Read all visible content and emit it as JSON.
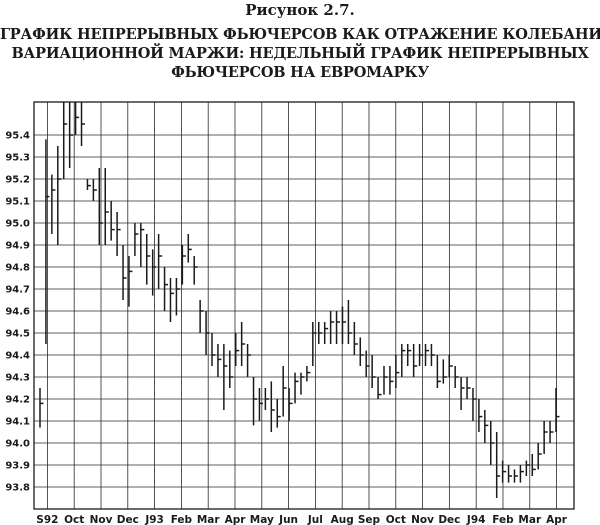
{
  "figure": {
    "label": "Рисунок 2.7.",
    "title_lines": [
      "ГРАФИК НЕПРЕРЫВНЫХ ФЬЮЧЕРСОВ КАК ОТРАЖЕНИЕ КОЛЕБАНИЙ",
      "ВАРИАЦИОННОЙ МАРЖИ: НЕДЕЛЬНЫЙ ГРАФИК НЕПРЕРЫВНЫХ",
      "ФЬЮЧЕРСОВ НА ЕВРОМАРКУ"
    ]
  },
  "chart_data": {
    "type": "bar",
    "subtype": "ohlc-weekly",
    "title": "ГРАФИК НЕПРЕРЫВНЫХ ФЬЮЧЕРСОВ КАК ОТРАЖЕНИЕ КОЛЕБАНИЙ ВАРИАЦИОННОЙ МАРЖИ: НЕДЕЛЬНЫЙ ГРАФИК НЕПРЕРЫВНЫХ ФЬЮЧЕРСОВ НА ЕВРОМАРКУ",
    "xlabel": "",
    "ylabel": "",
    "ylim": [
      93.7,
      95.55
    ],
    "y_ticks": [
      "95.4",
      "95.3",
      "95.2",
      "95.1",
      "95.0",
      "94.9",
      "94.8",
      "94.7",
      "94.6",
      "94.5",
      "94.4",
      "94.3",
      "94.2",
      "94.1",
      "94.0",
      "93.9",
      "93.8"
    ],
    "x_ticks": [
      "S92",
      "Oct",
      "Nov",
      "Dec",
      "J93",
      "Feb",
      "Mar",
      "Apr",
      "May",
      "Jun",
      "Jul",
      "Aug",
      "Sep",
      "Oct",
      "Nov",
      "Dec",
      "J94",
      "Feb",
      "Mar",
      "Apr"
    ],
    "grid": true,
    "bar_color": "#1a1a1a",
    "bars": [
      {
        "h": 94.25,
        "l": 94.07,
        "c": 94.18
      },
      {
        "h": 95.38,
        "l": 94.45,
        "c": 95.12
      },
      {
        "h": 95.22,
        "l": 94.95,
        "c": 95.15
      },
      {
        "h": 95.35,
        "l": 94.9,
        "c": 95.2
      },
      {
        "h": 95.55,
        "l": 95.2,
        "c": 95.45
      },
      {
        "h": 95.55,
        "l": 95.25,
        "c": 95.4
      },
      {
        "h": 95.55,
        "l": 95.4,
        "c": 95.48
      },
      {
        "h": 95.55,
        "l": 95.35,
        "c": 95.45
      },
      {
        "h": 95.2,
        "l": 95.15,
        "c": 95.17
      },
      {
        "h": 95.2,
        "l": 95.1,
        "c": 95.15
      },
      {
        "h": 95.25,
        "l": 94.9,
        "c": 95.0
      },
      {
        "h": 95.25,
        "l": 94.9,
        "c": 95.05
      },
      {
        "h": 95.1,
        "l": 94.92,
        "c": 94.97
      },
      {
        "h": 95.05,
        "l": 94.85,
        "c": 94.97
      },
      {
        "h": 94.9,
        "l": 94.65,
        "c": 94.75
      },
      {
        "h": 94.85,
        "l": 94.62,
        "c": 94.78
      },
      {
        "h": 95.0,
        "l": 94.85,
        "c": 94.95
      },
      {
        "h": 95.0,
        "l": 94.8,
        "c": 94.97
      },
      {
        "h": 94.95,
        "l": 94.72,
        "c": 94.85
      },
      {
        "h": 94.88,
        "l": 94.67,
        "c": 94.8
      },
      {
        "h": 94.95,
        "l": 94.7,
        "c": 94.85
      },
      {
        "h": 94.8,
        "l": 94.6,
        "c": 94.72
      },
      {
        "h": 94.75,
        "l": 94.55,
        "c": 94.68
      },
      {
        "h": 94.75,
        "l": 94.58,
        "c": 94.7
      },
      {
        "h": 94.9,
        "l": 94.72,
        "c": 94.85
      },
      {
        "h": 94.95,
        "l": 94.82,
        "c": 94.88
      },
      {
        "h": 94.85,
        "l": 94.72,
        "c": 94.8
      },
      {
        "h": 94.65,
        "l": 94.5,
        "c": 94.6
      },
      {
        "h": 94.6,
        "l": 94.4,
        "c": 94.5
      },
      {
        "h": 94.5,
        "l": 94.35,
        "c": 94.4
      },
      {
        "h": 94.45,
        "l": 94.3,
        "c": 94.38
      },
      {
        "h": 94.45,
        "l": 94.15,
        "c": 94.35
      },
      {
        "h": 94.42,
        "l": 94.25,
        "c": 94.3
      },
      {
        "h": 94.5,
        "l": 94.35,
        "c": 94.42
      },
      {
        "h": 94.55,
        "l": 94.35,
        "c": 94.45
      },
      {
        "h": 94.45,
        "l": 94.3,
        "c": 94.4
      },
      {
        "h": 94.3,
        "l": 94.08,
        "c": 94.2
      },
      {
        "h": 94.25,
        "l": 94.1,
        "c": 94.18
      },
      {
        "h": 94.25,
        "l": 94.15,
        "c": 94.2
      },
      {
        "h": 94.28,
        "l": 94.05,
        "c": 94.15
      },
      {
        "h": 94.2,
        "l": 94.07,
        "c": 94.12
      },
      {
        "h": 94.35,
        "l": 94.12,
        "c": 94.25
      },
      {
        "h": 94.25,
        "l": 94.1,
        "c": 94.18
      },
      {
        "h": 94.32,
        "l": 94.18,
        "c": 94.28
      },
      {
        "h": 94.32,
        "l": 94.22,
        "c": 94.3
      },
      {
        "h": 94.35,
        "l": 94.28,
        "c": 94.32
      },
      {
        "h": 94.55,
        "l": 94.35,
        "c": 94.5
      },
      {
        "h": 94.55,
        "l": 94.45,
        "c": 94.5
      },
      {
        "h": 94.55,
        "l": 94.45,
        "c": 94.52
      },
      {
        "h": 94.6,
        "l": 94.45,
        "c": 94.55
      },
      {
        "h": 94.6,
        "l": 94.45,
        "c": 94.55
      },
      {
        "h": 94.62,
        "l": 94.45,
        "c": 94.55
      },
      {
        "h": 94.65,
        "l": 94.45,
        "c": 94.5
      },
      {
        "h": 94.55,
        "l": 94.4,
        "c": 94.45
      },
      {
        "h": 94.48,
        "l": 94.35,
        "c": 94.4
      },
      {
        "h": 94.42,
        "l": 94.3,
        "c": 94.35
      },
      {
        "h": 94.4,
        "l": 94.25,
        "c": 94.3
      },
      {
        "h": 94.3,
        "l": 94.2,
        "c": 94.22
      },
      {
        "h": 94.35,
        "l": 94.22,
        "c": 94.3
      },
      {
        "h": 94.35,
        "l": 94.22,
        "c": 94.28
      },
      {
        "h": 94.4,
        "l": 94.25,
        "c": 94.32
      },
      {
        "h": 94.45,
        "l": 94.3,
        "c": 94.42
      },
      {
        "h": 94.45,
        "l": 94.35,
        "c": 94.42
      },
      {
        "h": 94.45,
        "l": 94.3,
        "c": 94.35
      },
      {
        "h": 94.45,
        "l": 94.35,
        "c": 94.4
      },
      {
        "h": 94.45,
        "l": 94.35,
        "c": 94.42
      },
      {
        "h": 94.45,
        "l": 94.35,
        "c": 94.4
      },
      {
        "h": 94.4,
        "l": 94.25,
        "c": 94.28
      },
      {
        "h": 94.38,
        "l": 94.27,
        "c": 94.3
      },
      {
        "h": 94.4,
        "l": 94.3,
        "c": 94.35
      },
      {
        "h": 94.35,
        "l": 94.25,
        "c": 94.3
      },
      {
        "h": 94.3,
        "l": 94.15,
        "c": 94.25
      },
      {
        "h": 94.3,
        "l": 94.2,
        "c": 94.25
      },
      {
        "h": 94.25,
        "l": 94.1,
        "c": 94.2
      },
      {
        "h": 94.2,
        "l": 94.05,
        "c": 94.12
      },
      {
        "h": 94.15,
        "l": 94.0,
        "c": 94.08
      },
      {
        "h": 94.1,
        "l": 93.9,
        "c": 94.0
      },
      {
        "h": 94.05,
        "l": 93.75,
        "c": 93.85
      },
      {
        "h": 93.92,
        "l": 93.82,
        "c": 93.87
      },
      {
        "h": 93.9,
        "l": 93.82,
        "c": 93.85
      },
      {
        "h": 93.88,
        "l": 93.82,
        "c": 93.85
      },
      {
        "h": 93.9,
        "l": 93.82,
        "c": 93.87
      },
      {
        "h": 93.92,
        "l": 93.85,
        "c": 93.9
      },
      {
        "h": 93.95,
        "l": 93.85,
        "c": 93.88
      },
      {
        "h": 94.0,
        "l": 93.88,
        "c": 93.95
      },
      {
        "h": 94.1,
        "l": 93.95,
        "c": 94.05
      },
      {
        "h": 94.1,
        "l": 94.0,
        "c": 94.05
      },
      {
        "h": 94.25,
        "l": 94.05,
        "c": 94.12
      }
    ]
  }
}
